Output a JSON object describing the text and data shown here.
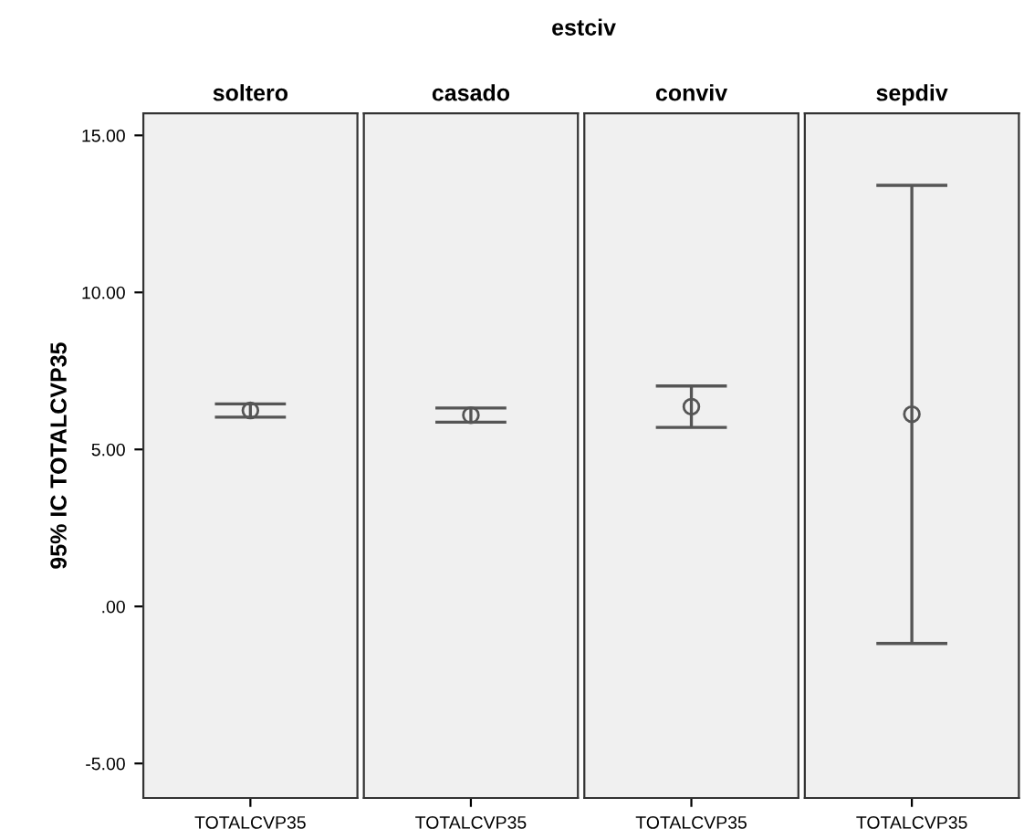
{
  "chart_data": [
    {
      "type": "scatter",
      "title": "soltero",
      "annotations": [
        "estciv"
      ],
      "ylabel": "95% IC TOTALCVP35",
      "categories": [
        "TOTALCVP35"
      ],
      "values": [
        6.24
      ],
      "errors": [
        [
          6.03,
          6.45
        ]
      ],
      "color": "#555555",
      "marker": "circle",
      "ylim": [
        -6.1,
        15.7
      ],
      "yticks": [
        {
          "value": 15,
          "label": "15.00"
        },
        {
          "value": 10,
          "label": "10.00"
        },
        {
          "value": 5,
          "label": "5.00"
        },
        {
          "value": 0,
          "label": ".00"
        },
        {
          "value": -5,
          "label": "-5.00"
        }
      ],
      "grid": false
    },
    {
      "type": "scatter",
      "title": "casado",
      "categories": [
        "TOTALCVP35"
      ],
      "values": [
        6.09
      ],
      "errors": [
        [
          5.87,
          6.32
        ]
      ],
      "color": "#555555",
      "marker": "circle",
      "ylim": [
        -6.1,
        15.7
      ],
      "tick_labels": "x",
      "grid": false
    },
    {
      "type": "scatter",
      "title": "conviv",
      "categories": [
        "TOTALCVP35"
      ],
      "values": [
        6.36
      ],
      "errors": [
        [
          5.7,
          7.02
        ]
      ],
      "color": "#555555",
      "marker": "circle",
      "ylim": [
        -6.1,
        15.7
      ],
      "tick_labels": "x",
      "grid": false
    },
    {
      "type": "scatter",
      "title": "sepdiv",
      "categories": [
        "TOTALCVP35"
      ],
      "values": [
        6.12
      ],
      "errors": [
        [
          -1.18,
          13.41
        ]
      ],
      "color": "#555555",
      "marker": "circle",
      "ylim": [
        -6.1,
        15.7
      ],
      "tick_labels": "x",
      "grid": false
    }
  ]
}
